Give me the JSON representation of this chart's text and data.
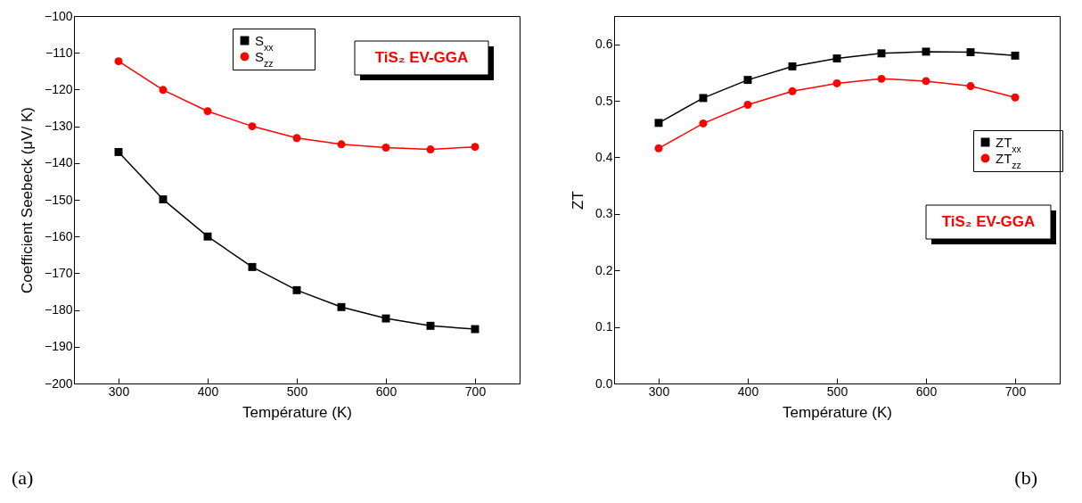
{
  "chart_data": [
    {
      "type": "line",
      "xlabel": "Température (K)",
      "ylabel": "Coefficient Seebeck (μV/ K)",
      "x": [
        300,
        350,
        400,
        450,
        500,
        550,
        600,
        650,
        700
      ],
      "series": [
        {
          "name": "S$_{xx}$",
          "color": "#000000",
          "marker": "square",
          "values": [
            -137.0,
            -149.9,
            -160.0,
            -168.3,
            -174.6,
            -179.2,
            -182.3,
            -184.3,
            -185.2
          ]
        },
        {
          "name": "S$_{zz}$",
          "color": "#ff0000",
          "marker": "circle",
          "values": [
            -112.3,
            -120.1,
            -125.9,
            -130.0,
            -133.2,
            -134.9,
            -135.8,
            -136.3,
            -135.6
          ]
        }
      ],
      "xlim": [
        250,
        750
      ],
      "xticks": [
        300,
        400,
        500,
        600,
        700
      ],
      "ylim": [
        -200,
        -100
      ],
      "yticks": [
        -200,
        -190,
        -180,
        -170,
        -160,
        -150,
        -140,
        -130,
        -120,
        -110,
        -100
      ],
      "legend": "top",
      "line_style": "solid",
      "grid": false,
      "annotations": [
        "TiS₂ EV-GGA",
        "(a)"
      ]
    },
    {
      "type": "line",
      "xlabel": "Température (K)",
      "ylabel": "ZT",
      "x": [
        300,
        350,
        400,
        450,
        500,
        550,
        600,
        650,
        700
      ],
      "series": [
        {
          "name": "ZT$_{xx}$",
          "color": "#000000",
          "marker": "square",
          "values": [
            0.461,
            0.505,
            0.537,
            0.561,
            0.575,
            0.584,
            0.587,
            0.586,
            0.58
          ]
        },
        {
          "name": "ZT$_{zz}$",
          "color": "#ff0000",
          "marker": "circle",
          "values": [
            0.416,
            0.46,
            0.493,
            0.517,
            0.531,
            0.539,
            0.535,
            0.526,
            0.506
          ]
        }
      ],
      "xlim": [
        250,
        750
      ],
      "xticks": [
        300,
        400,
        500,
        600,
        700
      ],
      "ylim": [
        0,
        0.65
      ],
      "yticks": [
        {
          "value": 0,
          "label": "0.0"
        },
        {
          "value": 0.1,
          "label": "0.1"
        },
        {
          "value": 0.2,
          "label": "0.2"
        },
        {
          "value": 0.3,
          "label": "0.3"
        },
        {
          "value": 0.4,
          "label": "0.4"
        },
        {
          "value": 0.5,
          "label": "0.5"
        },
        {
          "value": 0.6,
          "label": "0.6"
        }
      ],
      "legend": "right",
      "line_style": "solid",
      "grid": false,
      "annotations": [
        "TiS₂ EV-GGA",
        "(b)"
      ]
    }
  ]
}
